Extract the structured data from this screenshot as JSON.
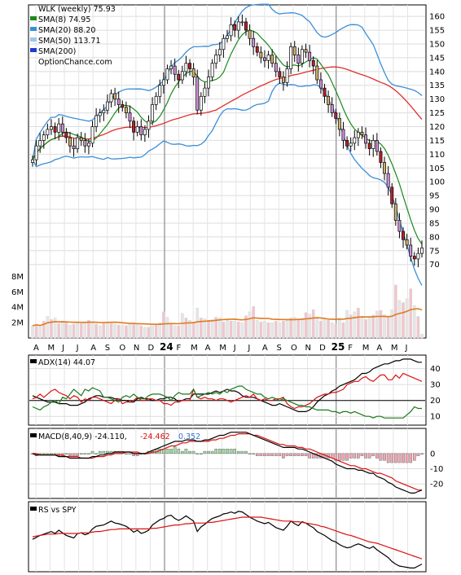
{
  "chart_data": [
    {
      "type": "candlestick",
      "ticker_line": "WLK (weekly) 75.93",
      "watermark": "OptionChance.com",
      "legend": [
        {
          "label": "SMA(8) 74.95",
          "color": "#1a8a1a"
        },
        {
          "label": "SMA(20) 88.20",
          "color": "#3a8fd8"
        },
        {
          "label": "SMA(50) 113.71",
          "color": "#e03030"
        },
        {
          "label": "SMA(200)",
          "color": "#1f3bd6"
        }
      ],
      "ylim": [
        64,
        163
      ],
      "y_ticks": [
        70,
        75,
        80,
        85,
        90,
        95,
        100,
        105,
        110,
        115,
        120,
        125,
        130,
        135,
        140,
        145,
        150,
        155,
        160
      ],
      "x_ticks": [
        "A",
        "M",
        "J",
        "J",
        "A",
        "S",
        "O",
        "N",
        "D",
        "24",
        "F",
        "M",
        "A",
        "M",
        "J",
        "J",
        "A",
        "S",
        "O",
        "N",
        "D",
        "25",
        "F",
        "M",
        "A",
        "M",
        "J"
      ],
      "close": [
        108,
        113,
        115,
        117,
        119,
        120,
        118,
        121,
        118,
        116,
        113,
        112,
        116,
        115,
        113,
        114,
        120,
        124,
        125,
        126,
        129,
        132,
        130,
        128,
        127,
        125,
        122,
        118,
        120,
        117,
        119,
        122,
        128,
        131,
        135,
        137,
        141,
        142,
        139,
        137,
        140,
        143,
        141,
        138,
        126,
        131,
        134,
        138,
        143,
        146,
        148,
        152,
        153,
        157,
        155,
        158,
        158,
        155,
        152,
        149,
        147,
        145,
        144,
        146,
        143,
        140,
        138,
        136,
        141,
        149,
        146,
        143,
        148,
        147,
        144,
        142,
        137,
        134,
        131,
        128,
        125,
        123,
        119,
        115,
        113,
        114,
        116,
        118,
        117,
        114,
        112,
        115,
        111,
        107,
        103,
        98,
        92,
        86,
        82,
        79,
        77,
        73,
        72,
        74,
        76
      ],
      "volume_ylim": [
        0,
        9000000
      ],
      "volume_ticks": [
        "2M",
        "4M",
        "6M",
        "8M"
      ],
      "volume_millions": [
        1.6,
        1.8,
        1.5,
        2.2,
        2.8,
        2.4,
        2.6,
        1.9,
        2.2,
        2.0,
        1.7,
        1.8,
        2.1,
        1.9,
        2.0,
        2.3,
        2.1,
        1.8,
        1.6,
        2.0,
        2.0,
        1.9,
        1.8,
        1.7,
        1.7,
        1.6,
        1.8,
        1.8,
        1.7,
        1.6,
        1.4,
        1.4,
        1.6,
        1.8,
        2.0,
        3.4,
        2.7,
        1.9,
        1.6,
        1.6,
        3.2,
        2.6,
        2.3,
        2.1,
        3.9,
        2.6,
        2.5,
        2.3,
        2.4,
        2.7,
        2.6,
        2.1,
        2.3,
        2.2,
        2.2,
        2.1,
        2.0,
        2.9,
        3.4,
        4.1,
        2.3,
        2.1,
        2.2,
        2.0,
        2.0,
        2.2,
        2.0,
        2.2,
        2.3,
        2.6,
        2.7,
        2.5,
        2.6,
        3.3,
        3.1,
        3.7,
        2.5,
        2.2,
        2.4,
        2.3,
        2.0,
        1.8,
        2.6,
        2.0,
        3.6,
        3.0,
        3.4,
        3.9,
        2.6,
        2.4,
        2.8,
        3.0,
        3.5,
        3.6,
        3.0,
        2.8,
        3.7,
        6.9,
        4.9,
        4.6,
        5.1,
        6.4,
        4.2,
        2.8,
        0.5
      ],
      "volume_sma": "orange line"
    },
    {
      "type": "line",
      "label": "ADX(14) 44.07",
      "ylim": [
        5,
        48
      ],
      "y_ticks": [
        10,
        20,
        30,
        40
      ],
      "series": [
        {
          "color": "#000000",
          "values": [
            23,
            22,
            21,
            20,
            19,
            19,
            19,
            18,
            18,
            18,
            17,
            17,
            17,
            18,
            19,
            21,
            22,
            23,
            23,
            22,
            22,
            22,
            21,
            21,
            20,
            20,
            19,
            19,
            21,
            22,
            21,
            21,
            20,
            20,
            21,
            21,
            22,
            22,
            21,
            19,
            20,
            21,
            21,
            24,
            24,
            24,
            24,
            24,
            25,
            26,
            25,
            26,
            27,
            26,
            26,
            25,
            23,
            22,
            22,
            22,
            21,
            20,
            19,
            18,
            17,
            17,
            18,
            17,
            16,
            15,
            14,
            13,
            13,
            13,
            14,
            16,
            19,
            21,
            23,
            24,
            26,
            27,
            29,
            30,
            31,
            32,
            33,
            35,
            37,
            37,
            38,
            40,
            41,
            42,
            43,
            43,
            44,
            45,
            45,
            46,
            46,
            46,
            45,
            44,
            44
          ]
        },
        {
          "color": "#dd1111",
          "values": [
            21,
            22,
            24,
            22,
            24,
            26,
            27,
            25,
            24,
            23,
            21,
            23,
            22,
            19,
            21,
            20,
            22,
            22,
            21,
            20,
            19,
            18,
            20,
            21,
            18,
            19,
            19,
            20,
            22,
            20,
            20,
            21,
            21,
            20,
            20,
            18,
            18,
            17,
            19,
            19,
            20,
            20,
            20,
            27,
            22,
            21,
            22,
            21,
            21,
            20,
            21,
            21,
            20,
            19,
            20,
            21,
            22,
            23,
            22,
            24,
            21,
            20,
            21,
            20,
            20,
            21,
            21,
            22,
            18,
            16,
            15,
            16,
            16,
            17,
            18,
            20,
            22,
            23,
            24,
            24,
            25,
            25,
            26,
            27,
            30,
            31,
            32,
            32,
            34,
            35,
            33,
            32,
            34,
            36,
            36,
            33,
            33,
            36,
            34,
            37,
            36,
            35,
            34,
            33,
            32
          ]
        },
        {
          "color": "#1a7a1a",
          "values": [
            16,
            15,
            14,
            16,
            17,
            19,
            20,
            18,
            22,
            21,
            24,
            27,
            25,
            23,
            27,
            26,
            28,
            27,
            26,
            22,
            22,
            21,
            20,
            19,
            22,
            23,
            22,
            24,
            22,
            21,
            21,
            23,
            24,
            24,
            24,
            23,
            22,
            20,
            23,
            25,
            24,
            24,
            24,
            27,
            22,
            23,
            24,
            25,
            24,
            25,
            24,
            26,
            25,
            27,
            28,
            29,
            29,
            27,
            26,
            25,
            24,
            24,
            22,
            21,
            22,
            21,
            20,
            21,
            20,
            19,
            18,
            17,
            17,
            16,
            16,
            15,
            14,
            14,
            14,
            14,
            13,
            13,
            12,
            13,
            13,
            12,
            13,
            12,
            11,
            10,
            10,
            9,
            10,
            10,
            9,
            9,
            9,
            9,
            9,
            9,
            11,
            13,
            16,
            15,
            15
          ]
        }
      ]
    },
    {
      "type": "line+bar",
      "label_prefix": "MACD(8,40,9) -24.110,",
      "label_signal": "-24.462",
      "label_hist": "0.352",
      "signal_color": "#dd1111",
      "hist_color": "#3a6fd8",
      "ylim": [
        -29,
        16
      ],
      "y_ticks": [
        -20,
        -10,
        0
      ],
      "macd": [
        0,
        -1,
        -1,
        -1,
        -1,
        -1,
        -1,
        -2,
        -2,
        -2,
        -3,
        -3,
        -3,
        -3,
        -3,
        -3,
        -2,
        -2,
        -1,
        -1,
        0,
        0,
        1,
        1,
        1,
        1,
        1,
        0,
        0,
        0,
        0,
        1,
        2,
        3,
        4,
        5,
        6,
        7,
        8,
        8,
        8,
        9,
        9,
        9,
        8,
        8,
        9,
        9,
        10,
        11,
        12,
        12,
        13,
        14,
        14,
        14,
        14,
        14,
        13,
        12,
        11,
        10,
        9,
        8,
        7,
        6,
        5,
        4,
        4,
        4,
        4,
        3,
        3,
        2,
        1,
        0,
        -1,
        -2,
        -3,
        -4,
        -5,
        -7,
        -8,
        -9,
        -10,
        -10,
        -10,
        -11,
        -11,
        -12,
        -13,
        -13,
        -15,
        -16,
        -17,
        -19,
        -20,
        -22,
        -23,
        -24,
        -25,
        -26,
        -26,
        -25,
        -24
      ],
      "signal": [
        0,
        0,
        -1,
        -1,
        -1,
        -1,
        -1,
        -1,
        -1,
        -2,
        -2,
        -2,
        -2,
        -3,
        -3,
        -3,
        -3,
        -2,
        -2,
        -2,
        -1,
        -1,
        0,
        0,
        0,
        1,
        1,
        1,
        1,
        0,
        0,
        0,
        1,
        1,
        2,
        3,
        4,
        5,
        5,
        6,
        7,
        7,
        8,
        8,
        8,
        8,
        8,
        8,
        9,
        9,
        10,
        10,
        11,
        12,
        12,
        13,
        13,
        13,
        13,
        12,
        12,
        11,
        10,
        9,
        8,
        7,
        6,
        6,
        5,
        5,
        5,
        4,
        4,
        3,
        3,
        2,
        1,
        0,
        -1,
        -2,
        -3,
        -4,
        -5,
        -6,
        -7,
        -8,
        -8,
        -9,
        -10,
        -10,
        -11,
        -12,
        -13,
        -13,
        -14,
        -15,
        -16,
        -18,
        -19,
        -20,
        -21,
        -22,
        -23,
        -24,
        -24
      ]
    },
    {
      "type": "line",
      "label": "RS vs SPY",
      "ylim": [
        0,
        100
      ],
      "series": [
        {
          "color": "#000000",
          "values": [
            46,
            49,
            52,
            54,
            56,
            58,
            55,
            60,
            56,
            52,
            50,
            48,
            55,
            56,
            53,
            55,
            62,
            66,
            67,
            68,
            71,
            74,
            71,
            70,
            68,
            66,
            62,
            57,
            60,
            55,
            57,
            60,
            68,
            72,
            76,
            78,
            82,
            83,
            78,
            75,
            78,
            82,
            78,
            74,
            58,
            65,
            69,
            74,
            78,
            80,
            82,
            85,
            86,
            88,
            86,
            89,
            88,
            84,
            80,
            77,
            74,
            72,
            70,
            72,
            68,
            64,
            62,
            60,
            66,
            74,
            70,
            67,
            73,
            71,
            67,
            64,
            58,
            55,
            52,
            48,
            44,
            42,
            38,
            35,
            33,
            34,
            37,
            39,
            37,
            34,
            32,
            35,
            30,
            26,
            22,
            18,
            12,
            8,
            5,
            4,
            3,
            2,
            2,
            5,
            8
          ]
        },
        {
          "color": "#dd1111",
          "values": [
            50,
            51,
            52,
            53,
            54,
            54,
            54,
            55,
            55,
            55,
            55,
            55,
            55,
            56,
            56,
            56,
            57,
            58,
            58,
            59,
            60,
            61,
            61,
            62,
            62,
            62,
            62,
            62,
            62,
            62,
            62,
            62,
            63,
            63,
            64,
            65,
            66,
            67,
            68,
            68,
            69,
            70,
            70,
            71,
            71,
            71,
            71,
            72,
            72,
            73,
            74,
            75,
            76,
            77,
            78,
            79,
            80,
            80,
            80,
            80,
            80,
            80,
            79,
            78,
            77,
            76,
            75,
            74,
            74,
            74,
            73,
            73,
            72,
            71,
            70,
            69,
            68,
            66,
            65,
            63,
            61,
            59,
            57,
            55,
            53,
            52,
            50,
            48,
            46,
            44,
            42,
            41,
            40,
            38,
            36,
            34,
            32,
            30,
            28,
            26,
            24,
            22,
            20,
            18,
            16
          ]
        }
      ]
    }
  ]
}
